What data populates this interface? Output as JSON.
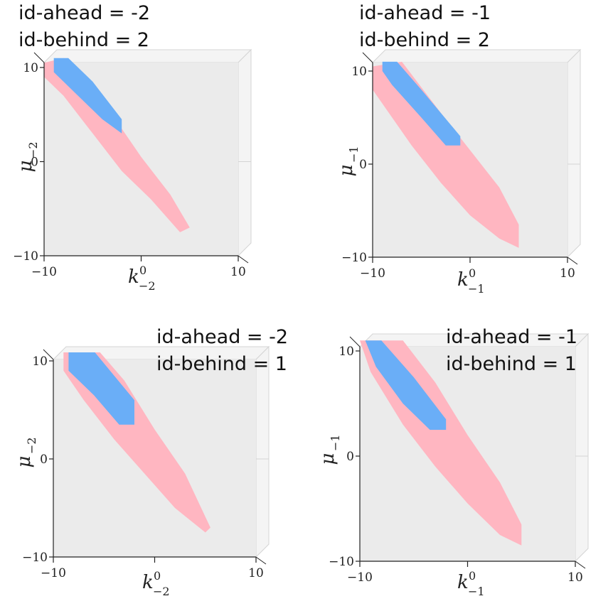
{
  "colors": {
    "background": "#ffffff",
    "plot_face": "#ebebeb",
    "pane_side": "#f4f4f4",
    "pane_edge": "#d4d4d4",
    "axis": "#222222",
    "pink": "#ffb6c1",
    "blue": "#6aaef7"
  },
  "chart_data": [
    {
      "type": "area",
      "caption": [
        "id-ahead = -2",
        "id-behind = 2"
      ],
      "xlabel": {
        "main": "k",
        "sup": "0",
        "sub": "−2"
      },
      "ylabel": {
        "main": "μ",
        "sub": "−2"
      },
      "xlim": [
        -10,
        10
      ],
      "ylim": [
        -10,
        10
      ],
      "x_ticks": [
        {
          "value": -10,
          "label": "−10"
        },
        {
          "value": 0,
          "label": ""
        },
        {
          "value": 10,
          "label": "10"
        }
      ],
      "y_ticks": [
        {
          "value": -10,
          "label": "−10"
        },
        {
          "value": 0,
          "label": "0"
        },
        {
          "value": 10,
          "label": "10"
        }
      ],
      "series": [
        {
          "color": "pink",
          "polygon": [
            [
              -10,
              10.5
            ],
            [
              -8,
              11
            ],
            [
              -5,
              8
            ],
            [
              -3,
              5
            ],
            [
              0,
              0.5
            ],
            [
              3,
              -3.5
            ],
            [
              5,
              -7
            ],
            [
              4,
              -7.5
            ],
            [
              1,
              -4
            ],
            [
              -2,
              -1
            ],
            [
              -5,
              3
            ],
            [
              -8,
              7
            ],
            [
              -10,
              9
            ]
          ]
        },
        {
          "color": "blue",
          "polygon": [
            [
              -9,
              11
            ],
            [
              -7.5,
              11
            ],
            [
              -5,
              8.5
            ],
            [
              -2,
              4.5
            ],
            [
              -2,
              3
            ],
            [
              -4,
              4.5
            ],
            [
              -7,
              7.5
            ],
            [
              -9,
              9.5
            ]
          ]
        }
      ]
    },
    {
      "type": "area",
      "caption": [
        "id-ahead = -1",
        "id-behind = 2"
      ],
      "xlabel": {
        "main": "k",
        "sup": "0",
        "sub": "−1"
      },
      "ylabel": {
        "main": "μ",
        "sub": "−1"
      },
      "xlim": [
        -10,
        10
      ],
      "ylim": [
        -10,
        10
      ],
      "x_ticks": [
        {
          "value": -10,
          "label": "−10"
        },
        {
          "value": 0,
          "label": ""
        },
        {
          "value": 10,
          "label": "10"
        }
      ],
      "y_ticks": [
        {
          "value": -10,
          "label": "−10"
        },
        {
          "value": 0,
          "label": "0"
        },
        {
          "value": 10,
          "label": "10"
        }
      ],
      "series": [
        {
          "color": "pink",
          "polygon": [
            [
              -10,
              10.5
            ],
            [
              -7,
              11
            ],
            [
              -3,
              5.5
            ],
            [
              0,
              1.5
            ],
            [
              3,
              -2.5
            ],
            [
              5,
              -6.5
            ],
            [
              5,
              -9
            ],
            [
              3,
              -8
            ],
            [
              0,
              -5.5
            ],
            [
              -3,
              -2
            ],
            [
              -6,
              2
            ],
            [
              -9,
              6.5
            ],
            [
              -10,
              8
            ]
          ]
        },
        {
          "color": "blue",
          "polygon": [
            [
              -9,
              11
            ],
            [
              -7.5,
              11
            ],
            [
              -5,
              8
            ],
            [
              -1,
              3
            ],
            [
              -1,
              2
            ],
            [
              -2.5,
              2
            ],
            [
              -5,
              5
            ],
            [
              -8,
              8.5
            ],
            [
              -9,
              10
            ]
          ]
        }
      ]
    },
    {
      "type": "area",
      "caption": [
        "id-ahead = -2",
        "id-behind = 1"
      ],
      "xlabel": {
        "main": "k",
        "sup": "0",
        "sub": "−2"
      },
      "ylabel": {
        "main": "μ",
        "sub": "−2"
      },
      "xlim": [
        -10,
        10
      ],
      "ylim": [
        -10,
        10
      ],
      "x_ticks": [
        {
          "value": -10,
          "label": "−10"
        },
        {
          "value": 0,
          "label": ""
        },
        {
          "value": 10,
          "label": "10"
        }
      ],
      "y_ticks": [
        {
          "value": -10,
          "label": "−10"
        },
        {
          "value": 0,
          "label": "0"
        },
        {
          "value": 10,
          "label": "10"
        }
      ],
      "series": [
        {
          "color": "pink",
          "polygon": [
            [
              -9,
              11
            ],
            [
              -5.5,
              11
            ],
            [
              -3,
              8
            ],
            [
              0,
              3
            ],
            [
              3,
              -1.5
            ],
            [
              5.5,
              -7
            ],
            [
              5,
              -7.5
            ],
            [
              2,
              -5
            ],
            [
              -1,
              -1.5
            ],
            [
              -4,
              2
            ],
            [
              -7,
              6
            ],
            [
              -9,
              9
            ]
          ]
        },
        {
          "color": "blue",
          "polygon": [
            [
              -8.5,
              11
            ],
            [
              -6,
              11
            ],
            [
              -4,
              8.5
            ],
            [
              -2,
              6
            ],
            [
              -2,
              3.5
            ],
            [
              -3.5,
              3.5
            ],
            [
              -6,
              6.5
            ],
            [
              -8.5,
              9
            ]
          ]
        }
      ]
    },
    {
      "type": "area",
      "caption": [
        "id-ahead = -1",
        "id-behind = 1"
      ],
      "xlabel": {
        "main": "k",
        "sup": "0",
        "sub": "−1"
      },
      "ylabel": {
        "main": "μ",
        "sub": "−1"
      },
      "xlim": [
        -10,
        10
      ],
      "ylim": [
        -10,
        10
      ],
      "x_ticks": [
        {
          "value": -10,
          "label": "−10"
        },
        {
          "value": 0,
          "label": ""
        },
        {
          "value": 10,
          "label": "10"
        }
      ],
      "y_ticks": [
        {
          "value": -10,
          "label": "−10"
        },
        {
          "value": 0,
          "label": "0"
        },
        {
          "value": 10,
          "label": "10"
        }
      ],
      "series": [
        {
          "color": "pink",
          "polygon": [
            [
              -10,
              11
            ],
            [
              -6,
              11
            ],
            [
              -3,
              7
            ],
            [
              0,
              2
            ],
            [
              3,
              -2.5
            ],
            [
              5,
              -6.5
            ],
            [
              5,
              -8.5
            ],
            [
              3,
              -7.5
            ],
            [
              0,
              -4.5
            ],
            [
              -3,
              -1
            ],
            [
              -6,
              3
            ],
            [
              -9,
              8
            ]
          ]
        },
        {
          "color": "blue",
          "polygon": [
            [
              -9.5,
              11
            ],
            [
              -8,
              11
            ],
            [
              -5,
              7.5
            ],
            [
              -2,
              3.5
            ],
            [
              -2,
              2.5
            ],
            [
              -3.5,
              2.5
            ],
            [
              -6,
              5
            ],
            [
              -8.5,
              8.5
            ]
          ]
        }
      ]
    }
  ]
}
